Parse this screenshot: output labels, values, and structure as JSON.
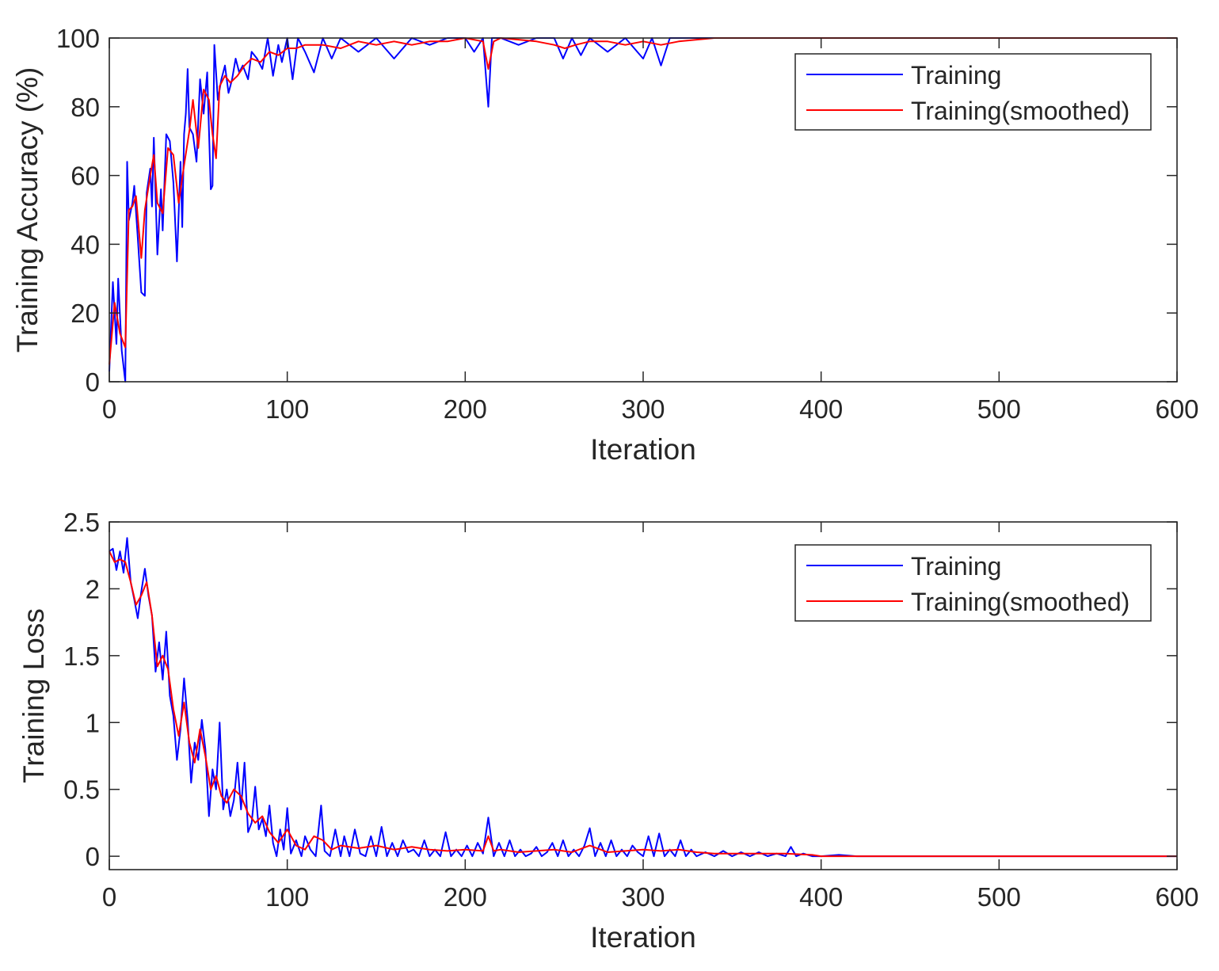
{
  "chart_data": [
    {
      "type": "line",
      "ylabel": "Training Accuracy (%)",
      "xlabel": "Iteration",
      "xlim": [
        0,
        600
      ],
      "ylim": [
        0,
        100
      ],
      "xticks": [
        0,
        100,
        200,
        300,
        400,
        500,
        600
      ],
      "yticks": [
        0,
        20,
        40,
        60,
        80,
        100
      ],
      "xtick_labels": [
        "0",
        "100",
        "200",
        "300",
        "400",
        "500",
        "600"
      ],
      "ytick_labels": [
        "0",
        "20",
        "40",
        "60",
        "80",
        "100"
      ],
      "legend_position": "top-right",
      "legend": [
        "Training",
        "Training(smoothed)"
      ],
      "colors": {
        "raw": "#0000ff",
        "smoothed": "#ff0000"
      },
      "series": [
        {
          "name": "Training",
          "x": [
            0,
            2,
            4,
            5,
            7,
            9,
            10,
            11,
            13,
            14,
            16,
            18,
            20,
            21,
            23,
            24,
            25,
            27,
            29,
            30,
            32,
            34,
            36,
            38,
            40,
            41,
            42,
            43,
            44,
            45,
            47,
            49,
            51,
            53,
            55,
            57,
            58,
            59,
            61,
            63,
            65,
            67,
            68,
            69,
            71,
            73,
            75,
            78,
            80,
            83,
            86,
            89,
            92,
            95,
            97,
            100,
            103,
            106,
            110,
            115,
            120,
            125,
            130,
            140,
            150,
            160,
            170,
            180,
            190,
            200,
            205,
            210,
            213,
            215,
            220,
            230,
            240,
            250,
            255,
            260,
            265,
            270,
            280,
            290,
            300,
            305,
            310,
            315,
            320,
            330,
            340,
            350,
            360,
            370,
            380,
            390,
            395,
            400,
            420,
            450,
            480,
            510,
            540,
            570,
            600
          ],
          "values": [
            3,
            29,
            11,
            30,
            9,
            0,
            64,
            47,
            52,
            57,
            42,
            26,
            25,
            55,
            62,
            51,
            71,
            37,
            56,
            44,
            72,
            70,
            58,
            35,
            64,
            45,
            72,
            78,
            91,
            74,
            72,
            64,
            88,
            78,
            90,
            56,
            57,
            98,
            82,
            88,
            92,
            84,
            86,
            88,
            94,
            90,
            92,
            88,
            96,
            94,
            91,
            100,
            89,
            98,
            93,
            100,
            88,
            100,
            96,
            90,
            100,
            94,
            100,
            96,
            100,
            94,
            100,
            98,
            100,
            100,
            96,
            100,
            80,
            100,
            100,
            98,
            100,
            100,
            94,
            100,
            95,
            100,
            96,
            100,
            94,
            100,
            92,
            100,
            100,
            100,
            100,
            100,
            100,
            100,
            100,
            100,
            100,
            100,
            100,
            100,
            100,
            100,
            100,
            100,
            100
          ]
        },
        {
          "name": "Training(smoothed)",
          "x": [
            0,
            3,
            6,
            9,
            11,
            13,
            15,
            18,
            20,
            23,
            25,
            27,
            30,
            33,
            36,
            39,
            42,
            45,
            47,
            50,
            53,
            56,
            58,
            60,
            62,
            65,
            68,
            72,
            76,
            80,
            85,
            90,
            95,
            100,
            105,
            110,
            120,
            130,
            140,
            150,
            160,
            170,
            180,
            190,
            200,
            210,
            213,
            216,
            220,
            240,
            250,
            256,
            262,
            270,
            280,
            290,
            300,
            310,
            320,
            340,
            360,
            380,
            400,
            450,
            500,
            550,
            600
          ],
          "values": [
            5,
            23,
            14,
            10,
            50,
            51,
            54,
            36,
            50,
            60,
            66,
            52,
            49,
            68,
            66,
            52,
            63,
            73,
            82,
            68,
            85,
            82,
            72,
            65,
            86,
            89,
            87,
            89,
            92,
            94,
            93,
            96,
            95,
            97,
            97,
            98,
            98,
            97,
            99,
            98,
            99,
            98,
            99,
            99,
            100,
            99,
            91,
            99,
            100,
            99,
            98,
            97,
            98,
            99,
            99,
            98,
            99,
            98,
            99,
            100,
            100,
            100,
            100,
            100,
            100,
            100,
            100
          ]
        }
      ]
    },
    {
      "type": "line",
      "ylabel": "Training Loss",
      "xlabel": "Iteration",
      "xlim": [
        0,
        600
      ],
      "ylim": [
        -0.1,
        2.5
      ],
      "xticks": [
        0,
        100,
        200,
        300,
        400,
        500,
        600
      ],
      "yticks": [
        0,
        0.5,
        1,
        1.5,
        2,
        2.5
      ],
      "xtick_labels": [
        "0",
        "100",
        "200",
        "300",
        "400",
        "500",
        "600"
      ],
      "ytick_labels": [
        "0",
        "0.5",
        "1",
        "1.5",
        "2",
        "2.5"
      ],
      "legend_position": "top-right",
      "legend": [
        "Training",
        "Training(smoothed)"
      ],
      "colors": {
        "raw": "#0000ff",
        "smoothed": "#ff0000"
      },
      "series": [
        {
          "name": "Training",
          "x": [
            0,
            2,
            4,
            6,
            8,
            10,
            12,
            14,
            16,
            18,
            20,
            22,
            24,
            26,
            28,
            30,
            32,
            34,
            36,
            38,
            40,
            42,
            44,
            46,
            48,
            50,
            52,
            54,
            56,
            58,
            60,
            62,
            64,
            66,
            68,
            70,
            72,
            74,
            76,
            78,
            80,
            82,
            84,
            86,
            88,
            90,
            92,
            94,
            96,
            98,
            100,
            102,
            105,
            108,
            110,
            113,
            116,
            119,
            121,
            124,
            127,
            130,
            132,
            135,
            138,
            141,
            144,
            147,
            150,
            153,
            156,
            159,
            162,
            165,
            168,
            171,
            174,
            177,
            180,
            183,
            186,
            189,
            192,
            195,
            198,
            201,
            204,
            207,
            210,
            213,
            216,
            219,
            222,
            225,
            228,
            231,
            234,
            237,
            240,
            243,
            246,
            249,
            252,
            255,
            258,
            261,
            264,
            267,
            270,
            273,
            276,
            279,
            282,
            285,
            288,
            291,
            294,
            297,
            300,
            303,
            306,
            309,
            312,
            315,
            318,
            321,
            324,
            327,
            330,
            335,
            340,
            345,
            350,
            355,
            360,
            365,
            370,
            375,
            380,
            383,
            386,
            390,
            395,
            400,
            410,
            420,
            450,
            500,
            550,
            600
          ],
          "values": [
            2.28,
            2.3,
            2.14,
            2.28,
            2.12,
            2.38,
            2.05,
            1.92,
            1.78,
            1.98,
            2.15,
            1.95,
            1.8,
            1.38,
            1.6,
            1.32,
            1.68,
            1.2,
            1.05,
            0.72,
            0.95,
            1.33,
            1.02,
            0.55,
            0.85,
            0.72,
            1.02,
            0.8,
            0.3,
            0.65,
            0.5,
            1.0,
            0.35,
            0.5,
            0.3,
            0.42,
            0.7,
            0.35,
            0.7,
            0.18,
            0.25,
            0.52,
            0.2,
            0.28,
            0.15,
            0.38,
            0.1,
            0.0,
            0.2,
            0.05,
            0.36,
            0.02,
            0.12,
            0.0,
            0.15,
            0.05,
            0.0,
            0.38,
            0.04,
            0.0,
            0.2,
            0.0,
            0.15,
            0.0,
            0.2,
            0.02,
            0.0,
            0.15,
            0.0,
            0.22,
            0.0,
            0.1,
            0.0,
            0.12,
            0.03,
            0.05,
            0.0,
            0.12,
            0.0,
            0.05,
            0.0,
            0.18,
            0.0,
            0.05,
            0.0,
            0.08,
            0.0,
            0.1,
            0.02,
            0.29,
            0.0,
            0.1,
            0.0,
            0.12,
            0.0,
            0.05,
            0.0,
            0.02,
            0.07,
            0.0,
            0.03,
            0.1,
            0.0,
            0.12,
            0.0,
            0.05,
            0.0,
            0.08,
            0.21,
            0.0,
            0.1,
            0.0,
            0.12,
            0.0,
            0.05,
            0.0,
            0.08,
            0.03,
            0.0,
            0.15,
            0.0,
            0.17,
            0.0,
            0.05,
            0.0,
            0.12,
            0.0,
            0.05,
            0.0,
            0.03,
            0.0,
            0.04,
            0.0,
            0.03,
            0.0,
            0.03,
            0.0,
            0.02,
            0.0,
            0.07,
            0.0,
            0.02,
            0.0,
            0.0,
            0.01,
            0.0,
            0.0,
            0.0,
            0.0,
            0.0
          ]
        },
        {
          "name": "Training(smoothed)",
          "x": [
            0,
            3,
            6,
            9,
            12,
            15,
            18,
            21,
            24,
            27,
            30,
            33,
            36,
            39,
            42,
            45,
            48,
            51,
            54,
            57,
            60,
            63,
            66,
            70,
            74,
            78,
            82,
            86,
            90,
            95,
            100,
            105,
            110,
            115,
            120,
            125,
            130,
            140,
            150,
            160,
            170,
            180,
            190,
            200,
            210,
            213,
            216,
            220,
            230,
            240,
            250,
            260,
            270,
            280,
            290,
            300,
            310,
            320,
            330,
            340,
            360,
            380,
            395,
            400,
            450,
            500,
            550,
            600
          ],
          "values": [
            2.28,
            2.2,
            2.22,
            2.2,
            2.05,
            1.88,
            1.95,
            2.05,
            1.8,
            1.42,
            1.5,
            1.4,
            1.1,
            0.9,
            1.15,
            0.85,
            0.7,
            0.95,
            0.75,
            0.5,
            0.6,
            0.45,
            0.4,
            0.5,
            0.45,
            0.32,
            0.25,
            0.3,
            0.18,
            0.1,
            0.2,
            0.08,
            0.05,
            0.15,
            0.12,
            0.05,
            0.08,
            0.06,
            0.08,
            0.05,
            0.07,
            0.05,
            0.04,
            0.05,
            0.04,
            0.15,
            0.04,
            0.05,
            0.03,
            0.04,
            0.05,
            0.03,
            0.08,
            0.03,
            0.04,
            0.05,
            0.04,
            0.05,
            0.03,
            0.02,
            0.02,
            0.02,
            0.01,
            0.0,
            0.0,
            0.0,
            0.0,
            0.0
          ]
        }
      ]
    }
  ]
}
